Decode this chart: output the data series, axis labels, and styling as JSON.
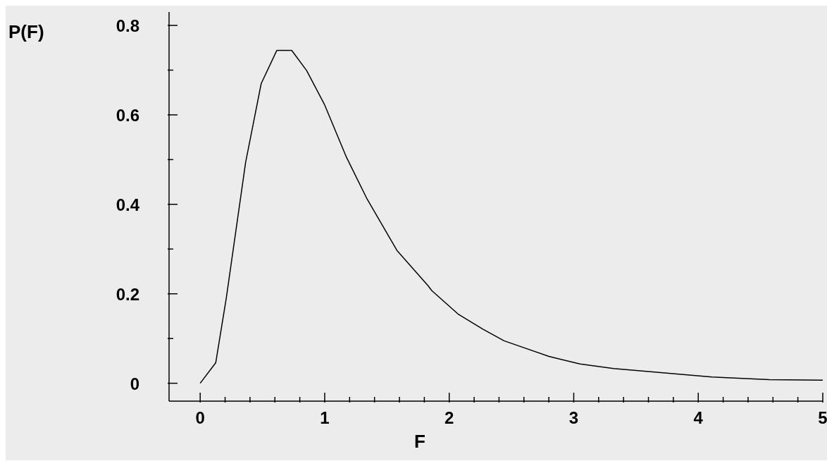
{
  "chart_data": {
    "type": "line",
    "xlabel": "F",
    "ylabel": "P(F)",
    "color": "#000000",
    "marker": "none",
    "x": [
      0,
      0.125,
      0.21,
      0.365,
      0.49,
      0.615,
      0.735,
      0.855,
      1.0,
      1.175,
      1.34,
      1.58,
      1.83,
      1.86,
      2.07,
      2.27,
      2.44,
      2.8,
      3.05,
      3.32,
      4.11,
      4.57,
      5.0
    ],
    "values": [
      0,
      0.046,
      0.191,
      0.494,
      0.67,
      0.744,
      0.744,
      0.699,
      0.622,
      0.505,
      0.412,
      0.297,
      0.218,
      0.207,
      0.155,
      0.121,
      0.095,
      0.06,
      0.043,
      0.033,
      0.014,
      0.008,
      0.007
    ],
    "xlim": [
      -0.25,
      5
    ],
    "xticks": [
      0,
      {
        "value": 0.2,
        "label": null
      },
      {
        "value": 0.4,
        "label": null
      },
      {
        "value": 0.6,
        "label": null
      },
      {
        "value": 0.8,
        "label": null
      },
      1,
      {
        "value": 1.2,
        "label": null
      },
      {
        "value": 1.4,
        "label": null
      },
      {
        "value": 1.6,
        "label": null
      },
      {
        "value": 1.8,
        "label": null
      },
      2,
      {
        "value": 2.2,
        "label": null
      },
      {
        "value": 2.4,
        "label": null
      },
      {
        "value": 2.6,
        "label": null
      },
      {
        "value": 2.8,
        "label": null
      },
      3,
      {
        "value": 3.2,
        "label": null
      },
      {
        "value": 3.4,
        "label": null
      },
      {
        "value": 3.6,
        "label": null
      },
      {
        "value": 3.8,
        "label": null
      },
      4,
      {
        "value": 4.2,
        "label": null
      },
      {
        "value": 4.4,
        "label": null
      },
      {
        "value": 4.6,
        "label": null
      },
      {
        "value": 4.8,
        "label": null
      },
      5
    ],
    "ylim": [
      -0.04,
      0.83
    ],
    "yticks": [
      0,
      {
        "value": 0.1,
        "label": null
      },
      0.2,
      {
        "value": 0.3,
        "label": null
      },
      0.4,
      {
        "value": 0.5,
        "label": null
      },
      0.6,
      {
        "value": 0.7,
        "label": null
      },
      0.8
    ]
  }
}
